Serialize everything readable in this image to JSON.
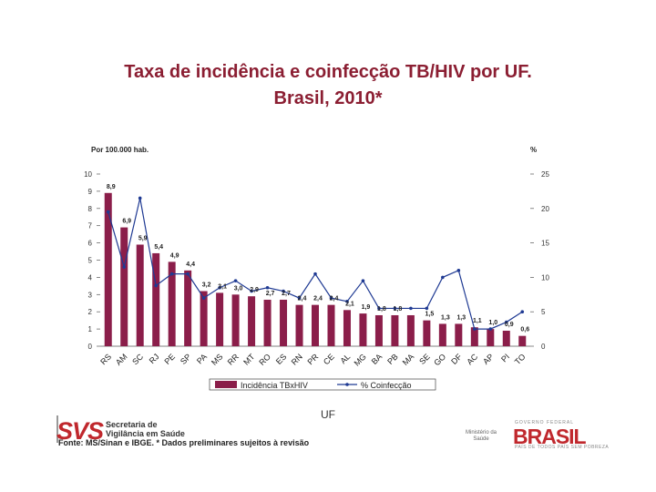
{
  "title_line1": "Taxa de incidência e coinfecção TB/HIV por UF.",
  "title_line2": "Brasil, 2010*",
  "colors": {
    "bar": "#8b1e4a",
    "line": "#1f3a93",
    "title": "#8b1e32",
    "brand": "#c0282d"
  },
  "chart_data": {
    "type": "bar",
    "left_axis_label": "Por 100.000 hab.",
    "right_axis_label": "%",
    "categories": [
      "RS",
      "AM",
      "SC",
      "RJ",
      "PE",
      "SP",
      "PA",
      "MS",
      "RR",
      "MT",
      "RO",
      "ES",
      "RN",
      "PR",
      "CE",
      "AL",
      "MG",
      "BA",
      "PB",
      "MA",
      "SE",
      "GO",
      "DF",
      "AC",
      "AP",
      "PI",
      "TO"
    ],
    "series": [
      {
        "name": "Incidência TBxHIV",
        "kind": "bar",
        "axis": "left",
        "values": [
          8.9,
          6.9,
          5.9,
          5.4,
          4.9,
          4.4,
          3.2,
          3.1,
          3.0,
          2.9,
          2.7,
          2.7,
          2.4,
          2.4,
          2.4,
          2.1,
          1.9,
          1.8,
          1.8,
          1.8,
          1.5,
          1.3,
          1.3,
          1.1,
          1.0,
          0.9,
          0.6
        ],
        "labels": [
          "8,9",
          "6,9",
          "5,9",
          "5,4",
          "4,9",
          "4,4",
          "3,2",
          "3,1",
          "3,0",
          "2,9",
          "2,7",
          "2,7",
          "2,4",
          "2,4",
          "2,4",
          "2,1",
          "1,9",
          "1,8",
          "1,8",
          "",
          "1,5",
          "1,3",
          "1,3",
          "1,1",
          "1,0",
          "0,9",
          "0,6"
        ]
      },
      {
        "name": "% Coinfecção",
        "kind": "line",
        "axis": "right",
        "values": [
          19.5,
          11.5,
          21.5,
          8.8,
          10.5,
          10.5,
          7.0,
          8.5,
          9.5,
          8.0,
          8.5,
          8.0,
          7.0,
          10.5,
          7.0,
          6.5,
          9.5,
          5.5,
          5.5,
          5.5,
          5.5,
          10.0,
          11.0,
          2.5,
          2.5,
          3.5,
          5.0
        ]
      }
    ],
    "ylim_left": [
      0,
      10
    ],
    "yticks_left": [
      0,
      1,
      2,
      3,
      4,
      5,
      6,
      7,
      8,
      9,
      10
    ],
    "ylim_right": [
      0,
      25
    ],
    "yticks_right": [
      0,
      5,
      10,
      15,
      20,
      25
    ],
    "xlabel": "UF",
    "legend_position": "bottom"
  },
  "footer": {
    "logo": "SVS",
    "org_line1": "Secretaria de",
    "org_line2": "Vigilância em Saúde",
    "source": "Fonte: MS/Sinan e IBGE. * Dados preliminares sujeitos à revisão",
    "ministerio_line1": "Ministério da",
    "ministerio_line2": "Saúde",
    "brasil_top": "GOVERNO FEDERAL",
    "brasil": "BRASIL",
    "brasil_bottom": "PAÍS DE TODOS PAÍS SEM POBREZA"
  }
}
